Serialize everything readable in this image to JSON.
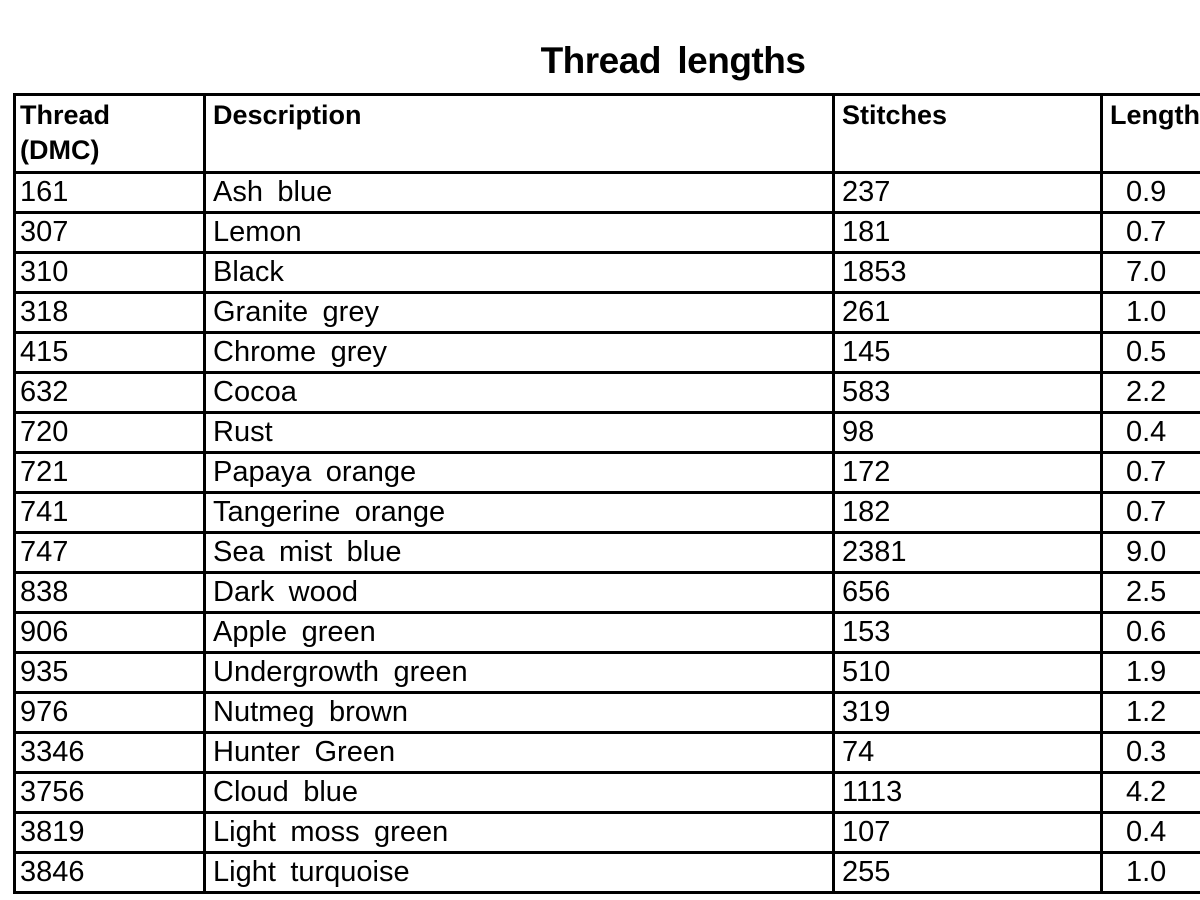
{
  "chart_data": {
    "type": "table",
    "title": "Thread lengths",
    "columns": [
      "Thread\n(DMC)",
      "Description",
      "Stitches",
      "Length (m)"
    ],
    "rows": [
      [
        "161",
        "Ash blue",
        "237",
        "0.9"
      ],
      [
        "307",
        "Lemon",
        "181",
        "0.7"
      ],
      [
        "310",
        "Black",
        "1853",
        "7.0"
      ],
      [
        "318",
        "Granite grey",
        "261",
        "1.0"
      ],
      [
        "415",
        "Chrome grey",
        "145",
        "0.5"
      ],
      [
        "632",
        "Cocoa",
        "583",
        "2.2"
      ],
      [
        "720",
        "Rust",
        "98",
        "0.4"
      ],
      [
        "721",
        "Papaya orange",
        "172",
        "0.7"
      ],
      [
        "741",
        "Tangerine orange",
        "182",
        "0.7"
      ],
      [
        "747",
        "Sea mist blue",
        "2381",
        "9.0"
      ],
      [
        "838",
        "Dark wood",
        "656",
        "2.5"
      ],
      [
        "906",
        "Apple green",
        "153",
        "0.6"
      ],
      [
        "935",
        "Undergrowth green",
        "510",
        "1.9"
      ],
      [
        "976",
        "Nutmeg brown",
        "319",
        "1.2"
      ],
      [
        "3346",
        "Hunter Green",
        "74",
        "0.3"
      ],
      [
        "3756",
        "Cloud blue",
        "1113",
        "4.2"
      ],
      [
        "3819",
        "Light moss green",
        "107",
        "0.4"
      ],
      [
        "3846",
        "Light turquoise",
        "255",
        "1.0"
      ]
    ],
    "colors": {
      "text": "#000000",
      "border": "#000000",
      "background": "#ffffff"
    }
  }
}
